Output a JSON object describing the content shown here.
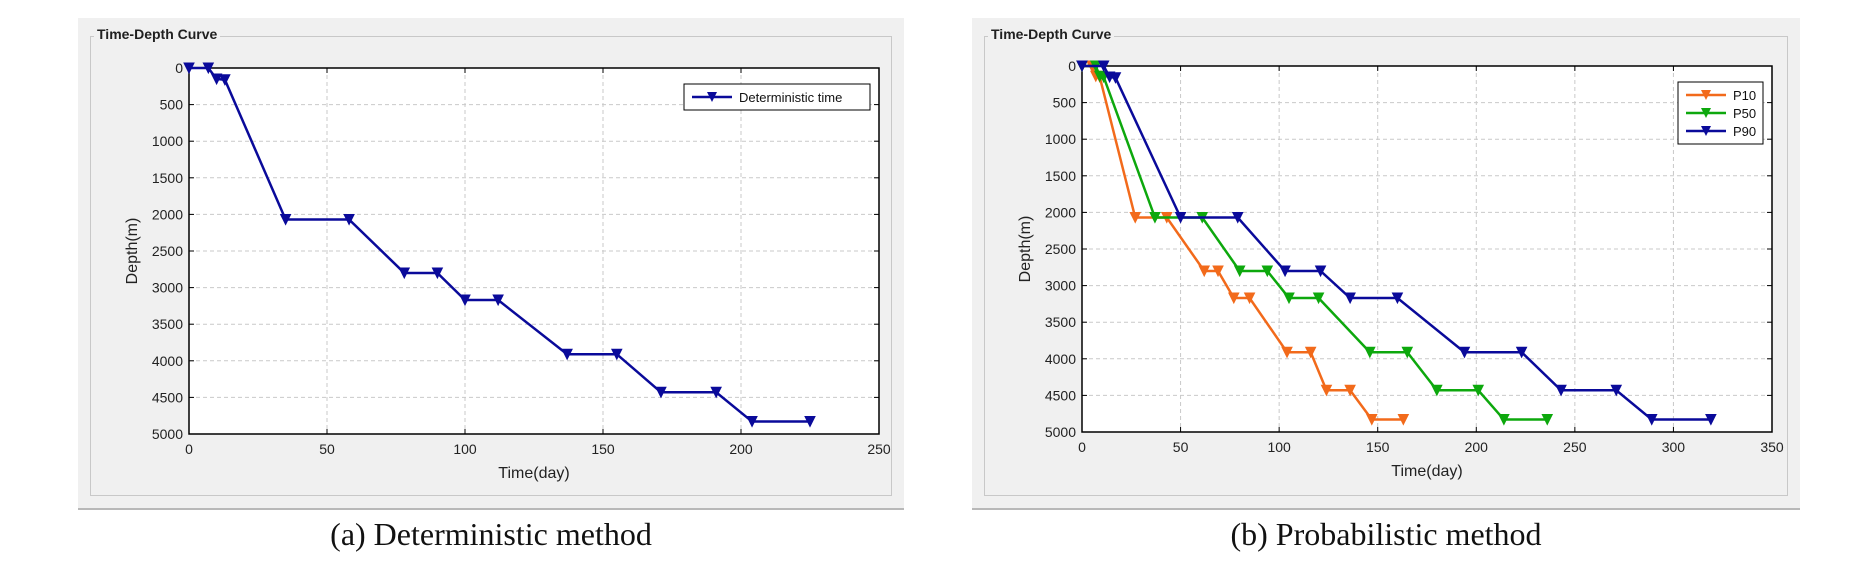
{
  "chart_data": [
    {
      "type": "line",
      "panel_title": "Time-Depth Curve",
      "caption": "(a) Deterministic method",
      "xlabel": "Time(day)",
      "ylabel": "Depth(m)",
      "xlim": [
        0,
        250
      ],
      "ylim": [
        0,
        5000
      ],
      "y_inverted": true,
      "xticks": [
        0,
        50,
        100,
        150,
        200,
        250
      ],
      "yticks": [
        0,
        500,
        1000,
        1500,
        2000,
        2500,
        3000,
        3500,
        4000,
        4500,
        5000
      ],
      "grid": true,
      "legend_position": "top-right",
      "series": [
        {
          "name": "Deterministic time",
          "color": "#0a0a9a",
          "x": [
            0,
            7,
            10,
            13,
            35,
            58,
            78,
            90,
            100,
            112,
            137,
            155,
            171,
            191,
            204,
            225
          ],
          "y": [
            0,
            0,
            150,
            160,
            2070,
            2070,
            2800,
            2800,
            3170,
            3170,
            3910,
            3910,
            4430,
            4430,
            4830,
            4830
          ]
        }
      ]
    },
    {
      "type": "line",
      "panel_title": "Time-Depth Curve",
      "caption": "(b) Probabilistic method",
      "xlabel": "Time(day)",
      "ylabel": "Depth(m)",
      "xlim": [
        0,
        350
      ],
      "ylim": [
        0,
        5000
      ],
      "y_inverted": true,
      "xticks": [
        0,
        50,
        100,
        150,
        200,
        250,
        300,
        350
      ],
      "yticks": [
        0,
        500,
        1000,
        1500,
        2000,
        2500,
        3000,
        3500,
        4000,
        4500,
        5000
      ],
      "grid": true,
      "legend_position": "top-right",
      "series": [
        {
          "name": "P10",
          "color": "#f26a1b",
          "x": [
            0,
            5,
            7,
            9,
            27,
            43,
            62,
            69,
            77,
            85,
            104,
            116,
            124,
            136,
            147,
            163
          ],
          "y": [
            0,
            0,
            140,
            150,
            2070,
            2070,
            2800,
            2800,
            3170,
            3170,
            3910,
            3910,
            4430,
            4430,
            4830,
            4830
          ]
        },
        {
          "name": "P50",
          "color": "#0da80d",
          "x": [
            0,
            7,
            9,
            11,
            37,
            61,
            80,
            94,
            105,
            120,
            146,
            165,
            180,
            201,
            214,
            236
          ],
          "y": [
            0,
            0,
            140,
            150,
            2070,
            2070,
            2800,
            2800,
            3170,
            3170,
            3910,
            3910,
            4430,
            4430,
            4830,
            4830
          ]
        },
        {
          "name": "P90",
          "color": "#0a0a9a",
          "x": [
            0,
            11,
            14,
            17,
            50,
            79,
            103,
            121,
            136,
            160,
            194,
            223,
            243,
            271,
            289,
            319
          ],
          "y": [
            0,
            0,
            150,
            160,
            2070,
            2070,
            2800,
            2800,
            3170,
            3170,
            3910,
            3910,
            4430,
            4430,
            4830,
            4830
          ]
        }
      ]
    }
  ]
}
